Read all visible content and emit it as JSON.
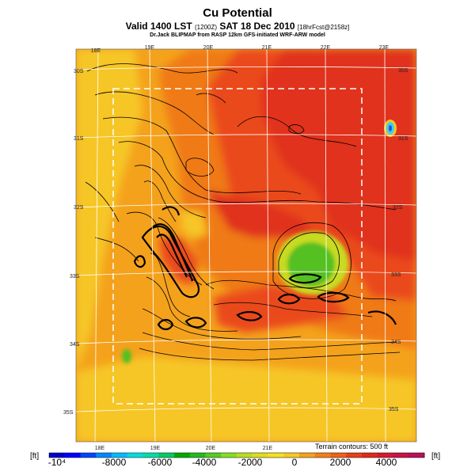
{
  "header": {
    "title": "Cu Potential",
    "subtitle_main": "Valid 1400 LST",
    "subtitle_small1": "(1200Z)",
    "subtitle_date": "SAT 18 Dec 2010",
    "subtitle_small2": "[18hrFcst@2158z]",
    "credit": "Dr.Jack BLIPMAP from RASP 12km GFS-initiated WRF-ARW model"
  },
  "map": {
    "lon_labels_top": [
      "18E",
      "19E",
      "20E",
      "21E",
      "22E",
      "23E"
    ],
    "lon_labels_bottom": [
      "18E",
      "19E",
      "20E",
      "21E"
    ],
    "lat_labels_left": [
      "30S",
      "31S",
      "32S",
      "33S",
      "34S",
      "35S"
    ],
    "lat_labels_right": [
      "30S",
      "31S",
      "32S",
      "33S",
      "34S",
      "35S"
    ],
    "terrain_note": "Terrain contours: 500 ft",
    "colors": {
      "base": "#f4a21c",
      "orange": "#f07a18",
      "red_orange": "#ea4a1a",
      "red": "#e0301c",
      "yellow": "#f6c628",
      "yellow_green": "#c8da24",
      "green": "#54c022",
      "cyan": "#40d0e8"
    }
  },
  "colorbar": {
    "unit_left": "[ft]",
    "unit_right": "[ft]",
    "tick_labels": [
      "-10⁴",
      "-8000",
      "-6000",
      "-4000",
      "-2000",
      "0",
      "2000",
      "4000"
    ],
    "min": -10000,
    "max": 5500,
    "colors": [
      "#0000cc",
      "#0000ff",
      "#0044ff",
      "#0088ff",
      "#00bbff",
      "#00dddd",
      "#00ddaa",
      "#00cc66",
      "#00aa00",
      "#22bb22",
      "#55cc22",
      "#88dd22",
      "#bbdd22",
      "#dddd22",
      "#f6e024",
      "#f8c828",
      "#f4a21c",
      "#f28018",
      "#f06018",
      "#e84018",
      "#e02a1c",
      "#d81830",
      "#c81448",
      "#b8105a"
    ]
  }
}
